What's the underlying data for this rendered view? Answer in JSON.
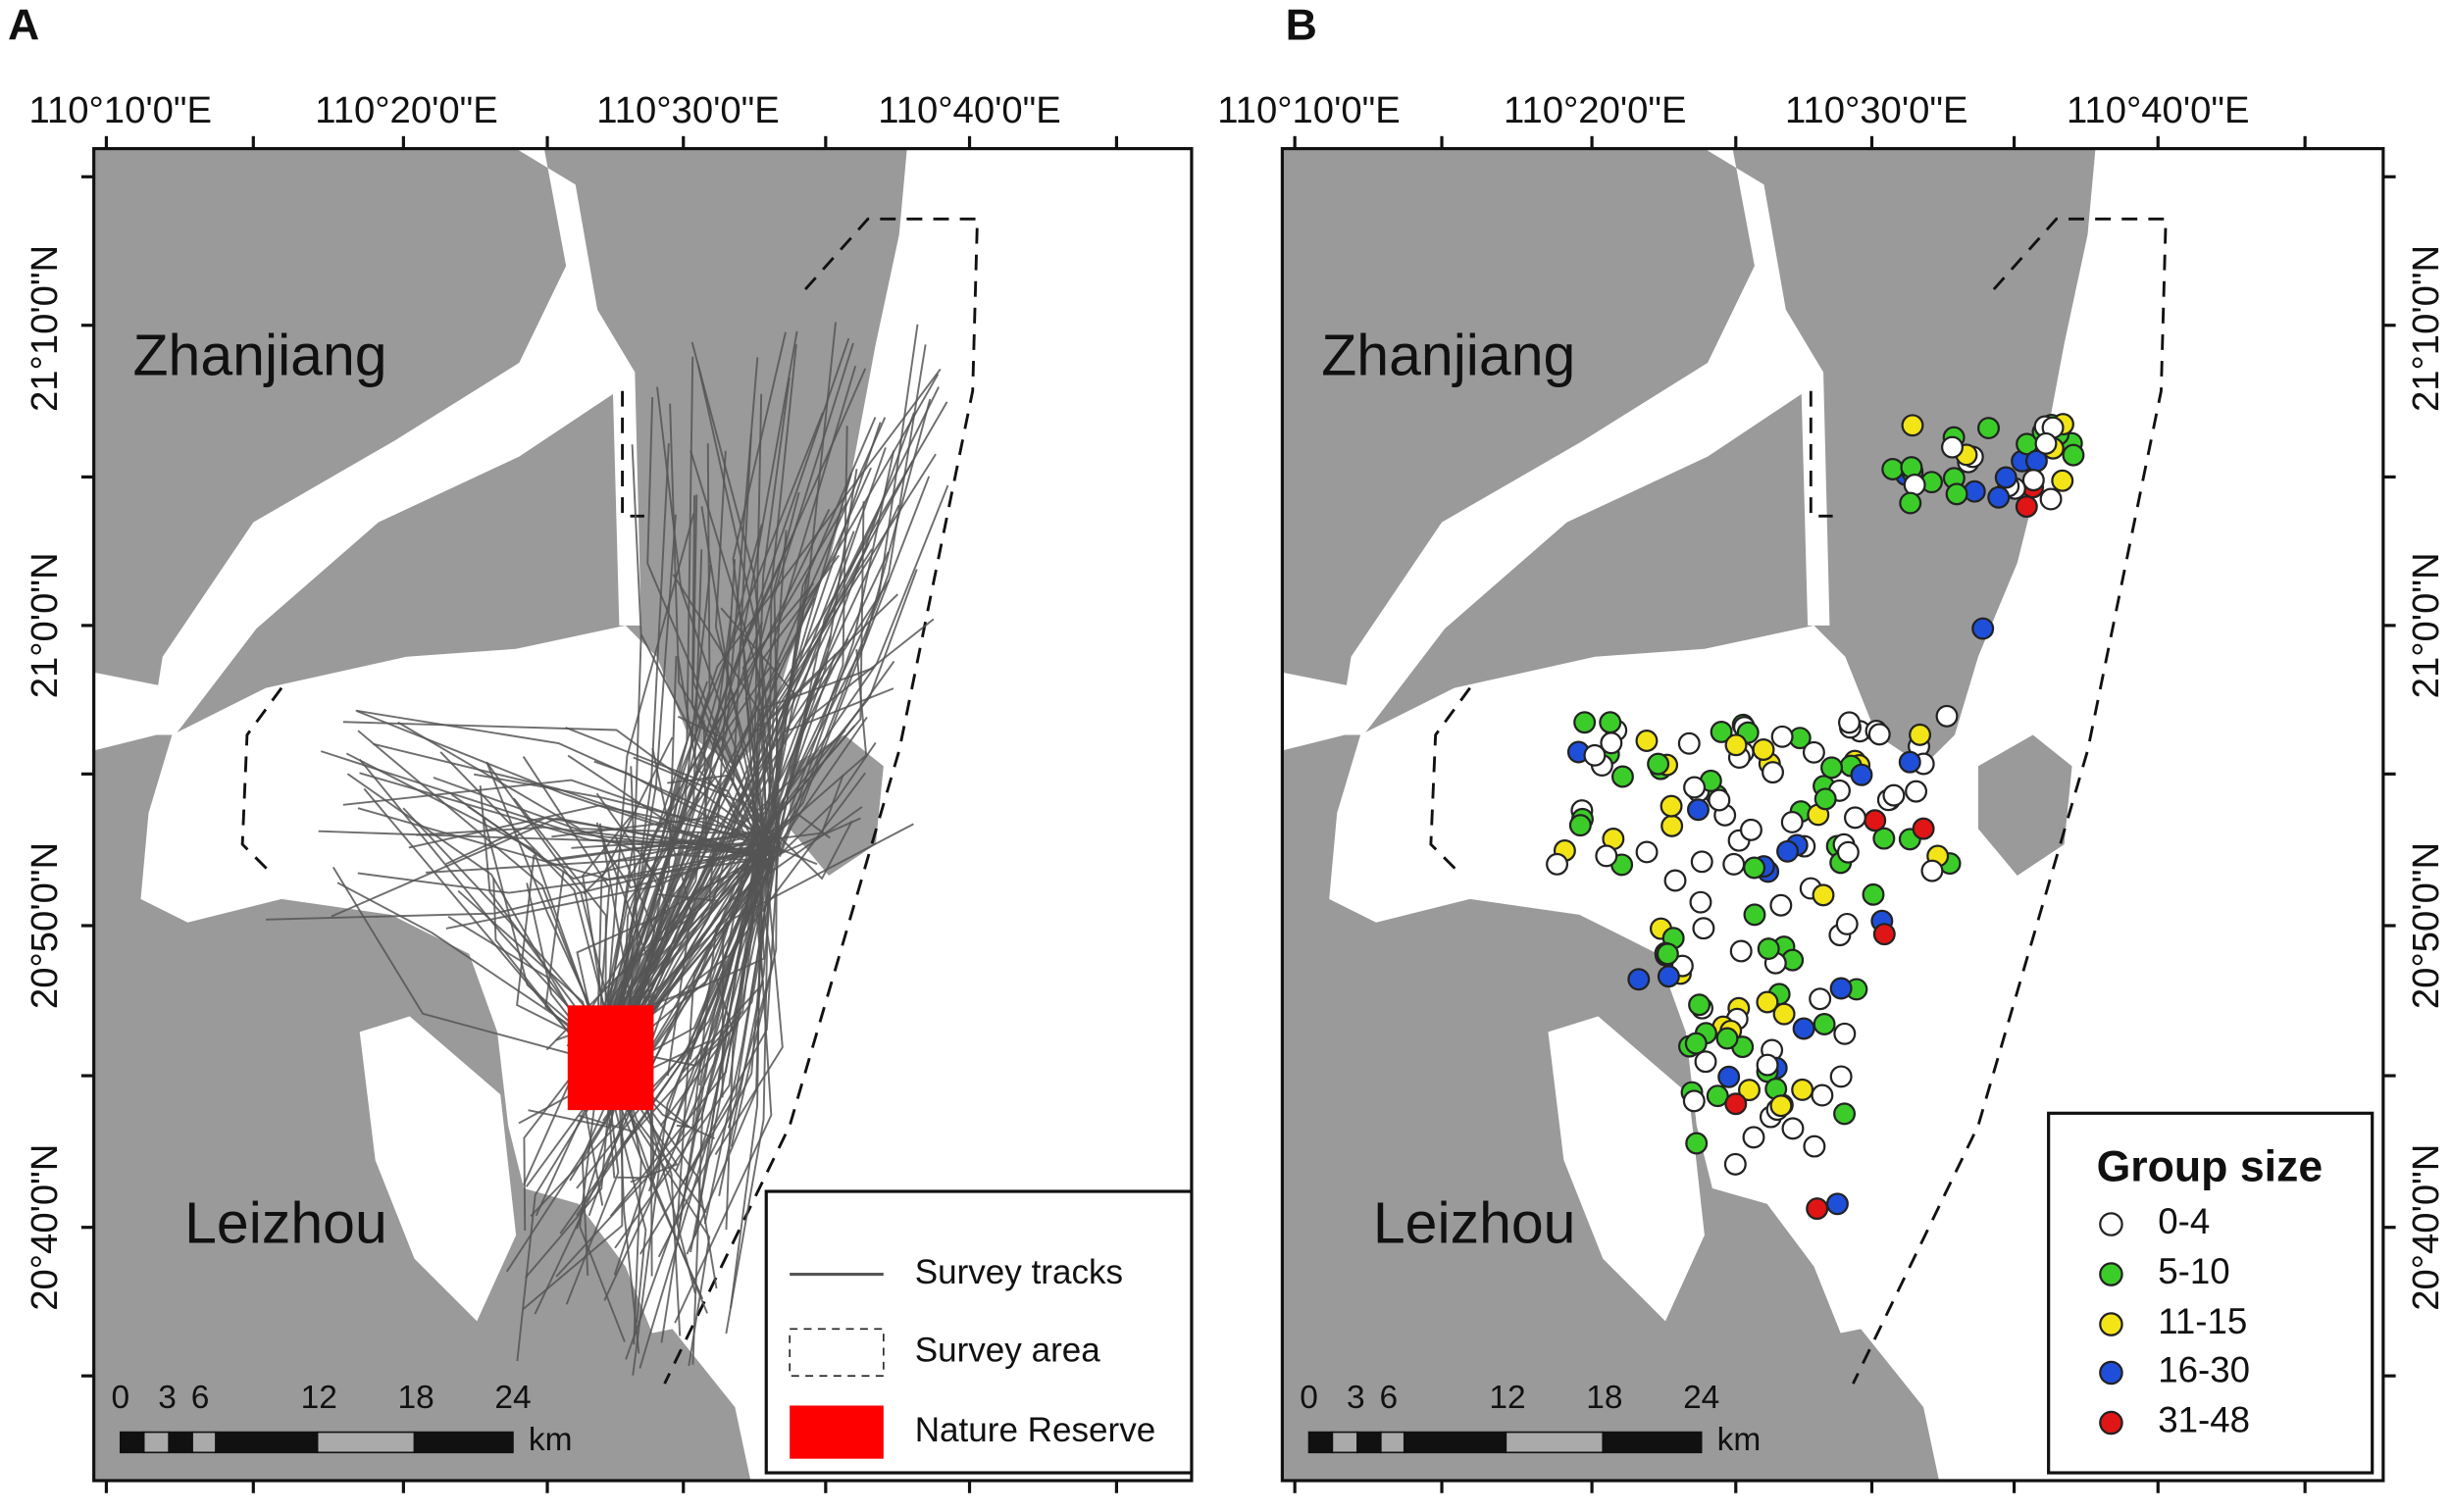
{
  "panels": [
    {
      "letter": "A",
      "lon_labels": [
        "110°10'0\"E",
        "110°20'0\"E",
        "110°30'0\"E",
        "110°40'0\"E"
      ],
      "lat_labels": [
        "21°10'0\"N",
        "21°0'0\"N",
        "20°50'0\"N",
        "20°40'0\"N"
      ],
      "places": [
        "Zhanjiang",
        "Leizhou"
      ],
      "scale": {
        "ticks": [
          "0",
          "3",
          "6",
          "12",
          "18",
          "24"
        ],
        "unit": "km"
      },
      "legend": {
        "items": [
          {
            "label": "Survey tracks",
            "color": "#555555"
          },
          {
            "label": "Survey area",
            "color": "#222222"
          },
          {
            "label": "Nature Reserve",
            "color": "#ff0000"
          }
        ]
      }
    },
    {
      "letter": "B",
      "lon_labels": [
        "110°10'0\"E",
        "110°20'0\"E",
        "110°30'0\"E",
        "110°40'0\"E"
      ],
      "lat_labels": [
        "21°10'0\"N",
        "21°0'0\"N",
        "20°50'0\"N",
        "20°40'0\"N"
      ],
      "places": [
        "Zhanjiang",
        "Leizhou"
      ],
      "scale": {
        "ticks": [
          "0",
          "3",
          "6",
          "12",
          "18",
          "24"
        ],
        "unit": "km"
      },
      "legend": {
        "title": "Group size",
        "items": [
          {
            "label": "0-4",
            "color": "#ffffff"
          },
          {
            "label": "5-10",
            "color": "#3ccc2a"
          },
          {
            "label": "11-15",
            "color": "#f2e416"
          },
          {
            "label": "16-30",
            "color": "#1f4fd8"
          },
          {
            "label": "31-48",
            "color": "#e01515"
          }
        ]
      }
    }
  ]
}
